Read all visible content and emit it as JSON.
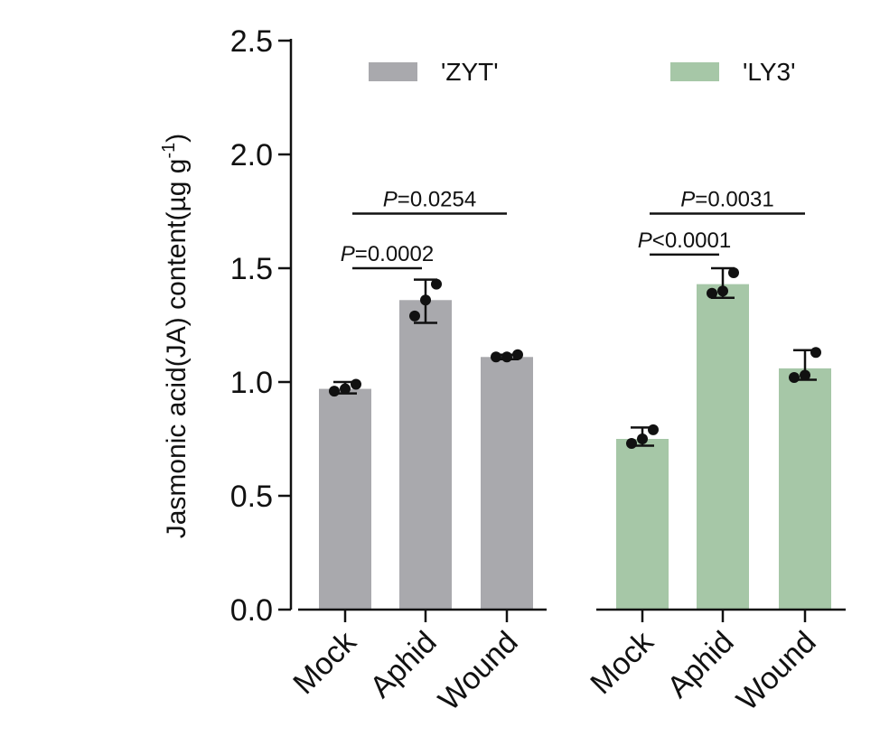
{
  "chart_data": {
    "type": "bar",
    "ylabel": "Jasmonic acid(JA) content(µg g",
    "ylabel_sup": "-1",
    "ylabel_close": ")",
    "ylim": [
      0,
      2.5
    ],
    "yticks": [
      "0.0",
      "0.5",
      "1.0",
      "1.5",
      "2.0",
      "2.5"
    ],
    "ytick_values": [
      0,
      0.5,
      1.0,
      1.5,
      2.0,
      2.5
    ],
    "legend_position": "top",
    "groups": [
      {
        "name": "'ZYT'",
        "color": "#a9a9ad",
        "categories": [
          "Mock",
          "Aphid",
          "Wound"
        ],
        "values": [
          0.97,
          1.36,
          1.11
        ],
        "error_low": [
          0.95,
          1.26,
          1.1
        ],
        "error_high": [
          1.0,
          1.45,
          1.12
        ],
        "points": [
          [
            0.96,
            0.97,
            0.99
          ],
          [
            1.29,
            1.36,
            1.43
          ],
          [
            1.11,
            1.11,
            1.12
          ]
        ]
      },
      {
        "name": "'LY3'",
        "color": "#a6c7a7",
        "categories": [
          "Mock",
          "Aphid",
          "Wound"
        ],
        "values": [
          0.75,
          1.43,
          1.06
        ],
        "error_low": [
          0.72,
          1.37,
          1.01
        ],
        "error_high": [
          0.8,
          1.5,
          1.14
        ],
        "points": [
          [
            0.73,
            0.75,
            0.79
          ],
          [
            1.39,
            1.4,
            1.48
          ],
          [
            1.02,
            1.03,
            1.13
          ]
        ]
      }
    ],
    "annotations": [
      {
        "group": 0,
        "from": 0,
        "to": 1,
        "p": "P",
        "rest": "=0.0002",
        "y": 1.5
      },
      {
        "group": 0,
        "from": 0,
        "to": 2,
        "p": "P",
        "rest": "=0.0254",
        "y": 1.74
      },
      {
        "group": 1,
        "from": 0,
        "to": 1,
        "p": "P",
        "rest": "<0.0001",
        "y": 1.56
      },
      {
        "group": 1,
        "from": 0,
        "to": 2,
        "p": "P",
        "rest": "=0.0031",
        "y": 1.74
      }
    ]
  }
}
